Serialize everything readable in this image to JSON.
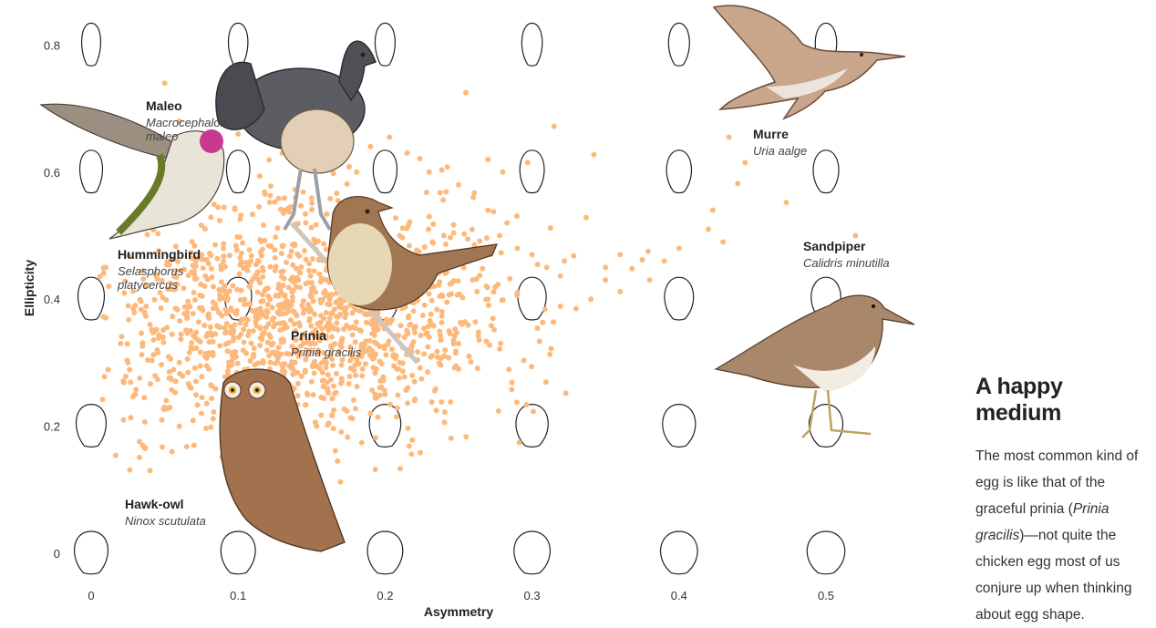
{
  "chart_data": {
    "type": "scatter",
    "title": "",
    "xlabel": "Asymmetry",
    "ylabel": "Ellipticity",
    "xlim": [
      0,
      0.5
    ],
    "ylim": [
      0,
      0.8
    ],
    "x_ticks": [
      "0",
      "0.1",
      "0.2",
      "0.3",
      "0.4",
      "0.5"
    ],
    "y_ticks": [
      "0",
      "0.2",
      "0.4",
      "0.6",
      "0.8"
    ],
    "point_color": "#fdb97c",
    "cluster": {
      "center_x": 0.13,
      "center_y": 0.37,
      "spread_x": 0.065,
      "spread_y": 0.09,
      "count": 1400
    },
    "outliers": [
      [
        0.255,
        0.725
      ],
      [
        0.315,
        0.672
      ],
      [
        0.445,
        0.615
      ],
      [
        0.434,
        0.655
      ],
      [
        0.44,
        0.582
      ],
      [
        0.473,
        0.552
      ],
      [
        0.423,
        0.54
      ],
      [
        0.52,
        0.5
      ],
      [
        0.43,
        0.49
      ],
      [
        0.42,
        0.51
      ],
      [
        0.379,
        0.475
      ],
      [
        0.4,
        0.48
      ],
      [
        0.39,
        0.46
      ],
      [
        0.38,
        0.43
      ],
      [
        0.36,
        0.412
      ],
      [
        0.34,
        0.4
      ],
      [
        0.33,
        0.385
      ],
      [
        0.35,
        0.45
      ],
      [
        0.36,
        0.47
      ],
      [
        0.368,
        0.448
      ],
      [
        0.375,
        0.462
      ],
      [
        0.31,
        0.45
      ],
      [
        0.322,
        0.46
      ],
      [
        0.3,
        0.47
      ],
      [
        0.29,
        0.48
      ],
      [
        0.278,
        0.5
      ],
      [
        0.283,
        0.52
      ],
      [
        0.27,
        0.54
      ],
      [
        0.26,
        0.56
      ],
      [
        0.25,
        0.58
      ],
      [
        0.23,
        0.6
      ],
      [
        0.215,
        0.63
      ],
      [
        0.203,
        0.655
      ],
      [
        0.19,
        0.64
      ],
      [
        0.297,
        0.615
      ],
      [
        0.28,
        0.6
      ],
      [
        0.27,
        0.62
      ],
      [
        0.35,
        0.43
      ],
      [
        0.29,
        0.41
      ],
      [
        0.27,
        0.4
      ],
      [
        0.025,
        0.3
      ],
      [
        0.03,
        0.25
      ],
      [
        0.022,
        0.21
      ],
      [
        0.035,
        0.17
      ],
      [
        0.06,
        0.2
      ],
      [
        0.05,
        0.23
      ],
      [
        0.068,
        0.26
      ],
      [
        0.04,
        0.13
      ],
      [
        0.055,
        0.16
      ],
      [
        0.07,
        0.17
      ],
      [
        0.075,
        0.22
      ],
      [
        0.02,
        0.33
      ],
      [
        0.012,
        0.42
      ],
      [
        0.01,
        0.45
      ],
      [
        0.05,
        0.74
      ],
      [
        0.06,
        0.68
      ],
      [
        0.1,
        0.66
      ],
      [
        0.11,
        0.7
      ],
      [
        0.13,
        0.63
      ],
      [
        0.16,
        0.69
      ],
      [
        0.17,
        0.62
      ],
      [
        0.21,
        0.5
      ],
      [
        0.23,
        0.53
      ],
      [
        0.24,
        0.5
      ],
      [
        0.25,
        0.33
      ],
      [
        0.25,
        0.29
      ],
      [
        0.18,
        0.28
      ],
      [
        0.2,
        0.25
      ],
      [
        0.19,
        0.22
      ],
      [
        0.15,
        0.27
      ],
      [
        0.16,
        0.3
      ],
      [
        0.21,
        0.3
      ],
      [
        0.23,
        0.34
      ],
      [
        0.22,
        0.27
      ],
      [
        0.24,
        0.31
      ],
      [
        0.03,
        0.39
      ],
      [
        0.04,
        0.36
      ],
      [
        0.045,
        0.32
      ],
      [
        0.06,
        0.3
      ],
      [
        0.08,
        0.29
      ]
    ],
    "annotations": [
      {
        "name": "Maleo",
        "scientific": [
          "Macrocephalon",
          "maleo"
        ]
      },
      {
        "name": "Hummingbird",
        "scientific": [
          "Selasphorus",
          "platycercus"
        ]
      },
      {
        "name": "Prinia",
        "scientific": [
          "Prinia gracilis"
        ]
      },
      {
        "name": "Hawk-owl",
        "scientific": [
          "Ninox scutulata"
        ]
      },
      {
        "name": "Murre",
        "scientific": [
          "Uria aalge"
        ]
      },
      {
        "name": "Sandpiper",
        "scientific": [
          "Calidris minutilla"
        ]
      }
    ],
    "egg_shape_rows": [
      0,
      0.2,
      0.4,
      0.6,
      0.8
    ],
    "egg_shape_cols": [
      0,
      0.1,
      0.2,
      0.3,
      0.4,
      0.5
    ],
    "grid": false,
    "legend": "none"
  },
  "sidebar": {
    "heading": "A happy medium",
    "text_1": "The most common kind of egg is like that of the graceful prinia (",
    "text_sci": "Prinia gracilis",
    "text_2": ")—not quite the chicken egg most of us conjure up when thinking about egg shape."
  }
}
